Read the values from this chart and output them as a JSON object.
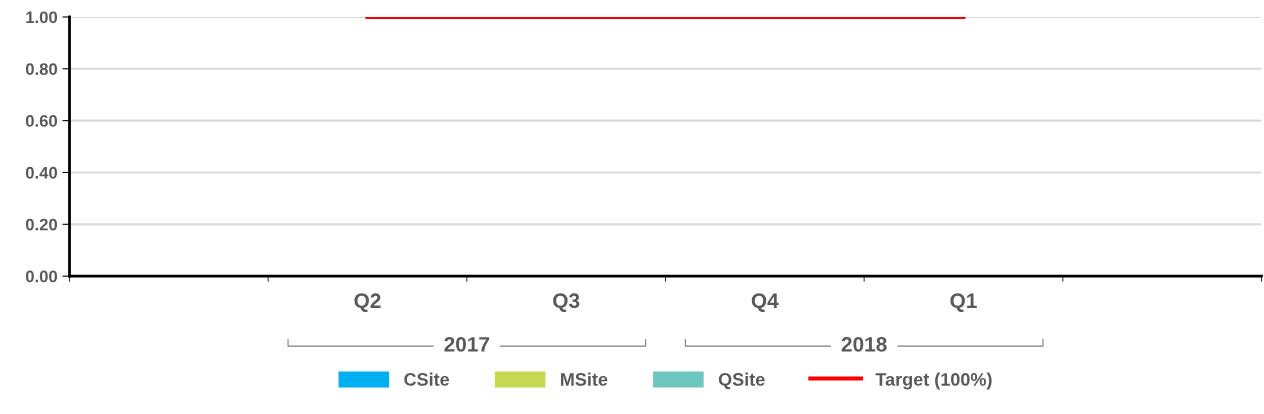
{
  "chart_data": {
    "type": "bar",
    "categories": [
      null,
      "Q2",
      "Q3",
      "Q4",
      "Q1",
      null
    ],
    "series": [
      {
        "name": "CSite",
        "color": "#00b0f0",
        "values": [
          null,
          null,
          null,
          null,
          null,
          null
        ]
      },
      {
        "name": "MSite",
        "color": "#c4d94f",
        "values": [
          null,
          null,
          null,
          null,
          null,
          null
        ]
      },
      {
        "name": "QSite",
        "color": "#6cc8bf",
        "values": [
          null,
          null,
          null,
          null,
          null,
          null
        ]
      },
      {
        "name": "Target (100%)",
        "type": "line",
        "color": "#ff0000",
        "values": [
          null,
          1,
          1,
          1,
          1,
          null
        ]
      }
    ],
    "ylim": [
      0,
      1
    ],
    "yticks": [
      {
        "value": 0,
        "label": "0.00"
      },
      {
        "value": 0.2,
        "label": "0.20"
      },
      {
        "value": 0.4,
        "label": "0.40"
      },
      {
        "value": 0.6,
        "label": "0.60"
      },
      {
        "value": 0.8,
        "label": "0.80"
      },
      {
        "value": 1,
        "label": "1.00"
      }
    ],
    "grid": "y",
    "legend": "bottom",
    "annotations": [
      "2017",
      "2018"
    ]
  }
}
